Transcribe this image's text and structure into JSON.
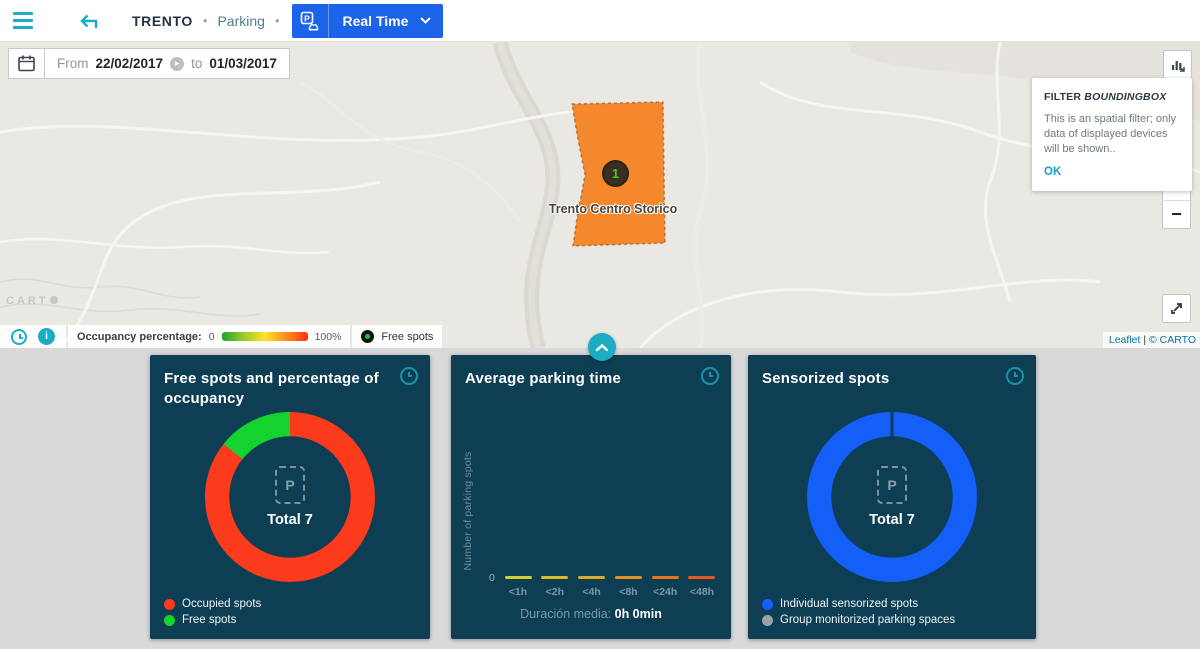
{
  "colors": {
    "accent_teal": "#1cadc2",
    "primary_blue": "#1b63e8",
    "card_background": "#0d3e54",
    "occupied_red": "#fc3b1c",
    "free_green": "#15d22e",
    "sensor_blue": "#135ff8",
    "group_gray": "#9aa2aa",
    "region_orange": "#f57f1e"
  },
  "topbar": {
    "breadcrumb": {
      "city": "TRENTO",
      "separator": "•",
      "section": "Parking"
    },
    "realtime_button": {
      "label": "Real Time"
    }
  },
  "map": {
    "date_filter": {
      "from_label": "From",
      "from_value": "22/02/2017",
      "to_label": "to",
      "to_value": "01/03/2017"
    },
    "region": {
      "name": "Trento Centro Storico",
      "marker_count": "1"
    },
    "filter_panel": {
      "title_prefix": "FILTER ",
      "title_emph": "BOUNDINGBOX",
      "body": "This is an spatial filter; only data of displayed devices will be shown..",
      "ok_label": "OK"
    },
    "controls": {
      "zoom_in": "+",
      "zoom_out": "−"
    },
    "legend": {
      "occupancy_label": "Occupancy percentage:",
      "min": "0",
      "max": "100%",
      "free_spots_label": "Free spots",
      "gradient": [
        "#1fa32a",
        "#9ccb2a",
        "#ffe12b",
        "#ff8c1e",
        "#ff2e12"
      ]
    },
    "attribution": {
      "leaflet": "Leaflet",
      "separator": "|",
      "carto": "© CARTO"
    },
    "watermark": "CART"
  },
  "icons": {
    "parking_placeholder": "P",
    "info": "i"
  },
  "chart_data": [
    {
      "type": "pie",
      "title": "Free spots and percentage of occupancy",
      "labels": [
        "Occupied spots",
        "Free spots"
      ],
      "values": [
        6,
        1
      ],
      "colors": [
        "#fc3b1c",
        "#15d22e"
      ],
      "total": 7,
      "center_label": "Total 7",
      "legend_position": "bottom-left"
    },
    {
      "type": "bar",
      "title": "Average parking time",
      "categories": [
        "<1h",
        "<2h",
        "<4h",
        "<8h",
        "<24h",
        "<48h"
      ],
      "values": [
        0,
        0,
        0,
        0,
        0,
        0
      ],
      "bar_colors": [
        "#cdd02e",
        "#d9bd2b",
        "#dfa827",
        "#e29125",
        "#e57522",
        "#e85a20"
      ],
      "ylabel": "Number of parking spots",
      "yticks": [
        "0"
      ],
      "ylim": [
        0,
        null
      ],
      "footer_label": "Duración media:",
      "footer_value": "0h 0min"
    },
    {
      "type": "pie",
      "title": "Sensorized spots",
      "labels": [
        "Individual sensorized spots",
        "Group monitorized parking spaces"
      ],
      "values": [
        7,
        0
      ],
      "colors": [
        "#135ff8",
        "#9aa2aa"
      ],
      "total": 7,
      "center_label": "Total 7",
      "legend_position": "bottom-left"
    }
  ]
}
